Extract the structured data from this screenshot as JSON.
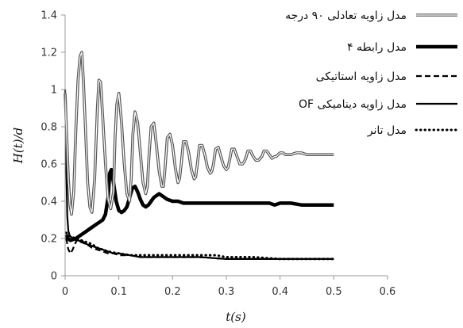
{
  "chart_data": {
    "type": "line",
    "title": "",
    "xlabel": "t(s)",
    "ylabel": "H(t)/d",
    "xlim": [
      0,
      0.6
    ],
    "ylim": [
      0,
      1.4
    ],
    "xticks": [
      0,
      0.1,
      0.2,
      0.3,
      0.4,
      0.5,
      0.6
    ],
    "yticks": [
      0,
      0.2,
      0.4,
      0.6,
      0.8,
      1,
      1.2,
      1.4
    ],
    "xtick_labels": [
      "0",
      "0.1",
      "0.2",
      "0.3",
      "0.4",
      "0.5",
      "0.6"
    ],
    "ytick_labels": [
      "0",
      "0.2",
      "0.4",
      "0.6",
      "0.8",
      "1",
      "1.2",
      "1.4"
    ],
    "grid": false,
    "legend_position": "top-right",
    "series": [
      {
        "name": "مدل زاویه تعادلی ۹۰ درجه",
        "style": "double",
        "color": "#555555",
        "x": [
          0,
          0.003,
          0.006,
          0.009,
          0.012,
          0.016,
          0.02,
          0.024,
          0.028,
          0.031,
          0.034,
          0.038,
          0.042,
          0.046,
          0.05,
          0.055,
          0.06,
          0.063,
          0.066,
          0.07,
          0.075,
          0.08,
          0.085,
          0.09,
          0.093,
          0.096,
          0.1,
          0.105,
          0.11,
          0.115,
          0.12,
          0.123,
          0.126,
          0.13,
          0.135,
          0.14,
          0.145,
          0.15,
          0.153,
          0.156,
          0.16,
          0.165,
          0.17,
          0.175,
          0.18,
          0.183,
          0.186,
          0.19,
          0.195,
          0.2,
          0.205,
          0.21,
          0.213,
          0.216,
          0.22,
          0.225,
          0.23,
          0.235,
          0.24,
          0.243,
          0.246,
          0.25,
          0.255,
          0.26,
          0.265,
          0.27,
          0.273,
          0.276,
          0.28,
          0.285,
          0.29,
          0.295,
          0.3,
          0.303,
          0.306,
          0.31,
          0.315,
          0.32,
          0.325,
          0.33,
          0.333,
          0.336,
          0.34,
          0.345,
          0.35,
          0.355,
          0.36,
          0.363,
          0.366,
          0.37,
          0.375,
          0.38,
          0.385,
          0.39,
          0.393,
          0.396,
          0.4,
          0.405,
          0.41,
          0.415,
          0.42,
          0.43,
          0.44,
          0.45,
          0.46,
          0.47,
          0.48,
          0.49,
          0.5
        ],
        "y": [
          0.98,
          0.75,
          0.52,
          0.38,
          0.33,
          0.45,
          0.78,
          1.05,
          1.18,
          1.2,
          1.05,
          0.78,
          0.5,
          0.37,
          0.34,
          0.52,
          0.9,
          1.05,
          1.04,
          0.85,
          0.6,
          0.41,
          0.36,
          0.45,
          0.74,
          0.92,
          0.98,
          0.82,
          0.6,
          0.44,
          0.4,
          0.52,
          0.76,
          0.88,
          0.82,
          0.66,
          0.5,
          0.44,
          0.48,
          0.64,
          0.8,
          0.82,
          0.7,
          0.56,
          0.48,
          0.48,
          0.58,
          0.74,
          0.76,
          0.7,
          0.58,
          0.5,
          0.52,
          0.6,
          0.72,
          0.72,
          0.66,
          0.57,
          0.52,
          0.53,
          0.6,
          0.7,
          0.7,
          0.65,
          0.58,
          0.55,
          0.56,
          0.6,
          0.68,
          0.69,
          0.64,
          0.59,
          0.57,
          0.58,
          0.62,
          0.68,
          0.68,
          0.64,
          0.6,
          0.6,
          0.61,
          0.63,
          0.67,
          0.67,
          0.64,
          0.62,
          0.62,
          0.63,
          0.64,
          0.67,
          0.67,
          0.65,
          0.63,
          0.64,
          0.64,
          0.65,
          0.66,
          0.66,
          0.65,
          0.65,
          0.65,
          0.66,
          0.66,
          0.65,
          0.65,
          0.65,
          0.65,
          0.65,
          0.65
        ]
      },
      {
        "name": "مدل رابطه ۴",
        "style": "thick",
        "color": "#000000",
        "x": [
          0.002,
          0.005,
          0.01,
          0.02,
          0.03,
          0.04,
          0.05,
          0.06,
          0.07,
          0.075,
          0.08,
          0.083,
          0.086,
          0.09,
          0.095,
          0.1,
          0.105,
          0.11,
          0.115,
          0.12,
          0.125,
          0.13,
          0.135,
          0.14,
          0.145,
          0.15,
          0.155,
          0.16,
          0.165,
          0.17,
          0.175,
          0.18,
          0.185,
          0.19,
          0.2,
          0.21,
          0.22,
          0.24,
          0.26,
          0.28,
          0.3,
          0.32,
          0.34,
          0.36,
          0.38,
          0.39,
          0.4,
          0.42,
          0.44,
          0.46,
          0.48,
          0.5
        ],
        "y": [
          0.22,
          0.2,
          0.19,
          0.2,
          0.22,
          0.24,
          0.26,
          0.28,
          0.3,
          0.33,
          0.42,
          0.55,
          0.57,
          0.5,
          0.4,
          0.35,
          0.34,
          0.35,
          0.37,
          0.42,
          0.47,
          0.48,
          0.45,
          0.41,
          0.38,
          0.37,
          0.38,
          0.4,
          0.42,
          0.43,
          0.44,
          0.43,
          0.42,
          0.41,
          0.4,
          0.4,
          0.39,
          0.39,
          0.39,
          0.39,
          0.39,
          0.39,
          0.39,
          0.39,
          0.39,
          0.38,
          0.39,
          0.39,
          0.38,
          0.38,
          0.38,
          0.38
        ]
      },
      {
        "name": "مدل زاویه استاتیکی",
        "style": "dashed",
        "color": "#000000",
        "x": [
          0.002,
          0.006,
          0.01,
          0.014,
          0.018,
          0.022,
          0.026,
          0.03,
          0.035,
          0.04,
          0.05,
          0.06,
          0.07,
          0.08,
          0.09,
          0.1,
          0.12,
          0.14,
          0.16,
          0.18,
          0.2,
          0.25,
          0.3,
          0.35,
          0.4,
          0.45,
          0.5
        ],
        "y": [
          0.2,
          0.14,
          0.12,
          0.14,
          0.17,
          0.19,
          0.2,
          0.19,
          0.18,
          0.17,
          0.15,
          0.14,
          0.13,
          0.12,
          0.12,
          0.11,
          0.11,
          0.1,
          0.1,
          0.1,
          0.1,
          0.1,
          0.09,
          0.09,
          0.09,
          0.09,
          0.09
        ]
      },
      {
        "name": "مدل زاویه دینامیکی OF",
        "style": "solid",
        "color": "#000000",
        "x": [
          0,
          0.002,
          0.004,
          0.006,
          0.008,
          0.01,
          0.015,
          0.02,
          0.025,
          0.03,
          0.04,
          0.05,
          0.06,
          0.07,
          0.08,
          0.09,
          0.1,
          0.12,
          0.14,
          0.16,
          0.18,
          0.2,
          0.25,
          0.3,
          0.35,
          0.4,
          0.45,
          0.5
        ],
        "y": [
          1,
          0.6,
          0.32,
          0.24,
          0.22,
          0.21,
          0.2,
          0.19,
          0.19,
          0.18,
          0.17,
          0.16,
          0.15,
          0.14,
          0.13,
          0.12,
          0.12,
          0.11,
          0.1,
          0.1,
          0.1,
          0.1,
          0.1,
          0.09,
          0.09,
          0.09,
          0.09,
          0.09
        ]
      },
      {
        "name": "مدل تانر",
        "style": "dotted",
        "color": "#000000",
        "x": [
          0.002,
          0.01,
          0.02,
          0.03,
          0.04,
          0.05,
          0.06,
          0.08,
          0.1,
          0.12,
          0.14,
          0.16,
          0.18,
          0.2,
          0.22,
          0.24,
          0.26,
          0.28,
          0.3,
          0.35,
          0.4,
          0.45,
          0.5
        ],
        "y": [
          0.23,
          0.21,
          0.2,
          0.19,
          0.18,
          0.17,
          0.15,
          0.13,
          0.12,
          0.11,
          0.11,
          0.11,
          0.11,
          0.11,
          0.11,
          0.11,
          0.11,
          0.11,
          0.1,
          0.1,
          0.09,
          0.09,
          0.09
        ]
      }
    ]
  }
}
